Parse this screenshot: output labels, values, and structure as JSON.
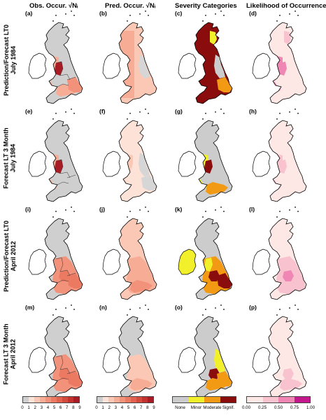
{
  "columns": [
    {
      "title": "Obs. Occur.",
      "radical": "√Nᵢ"
    },
    {
      "title": "Pred. Occur.",
      "radical": "√Nᵢ"
    },
    {
      "title": "Severity Categories",
      "radical": ""
    },
    {
      "title": "Likelihood of Occurrence",
      "radical": ""
    }
  ],
  "rows": [
    {
      "line1": "Prediction/Forecast LT0",
      "line2": "July 1984"
    },
    {
      "line1": "Forecast LT 3 Month",
      "line2": "July 1984"
    },
    {
      "line1": "Prediction/Forecast LT0",
      "line2": "April 2012"
    },
    {
      "line1": "Forecast LT 3 Month",
      "line2": "April 2012"
    }
  ],
  "panel_labels": [
    "(a)",
    "(b)",
    "(c)",
    "(d)",
    "(e)",
    "(f)",
    "(g)",
    "(h)",
    "(i)",
    "(j)",
    "(k)",
    "(l)",
    "(m)",
    "(n)",
    "(o)",
    "(p)"
  ],
  "colors": {
    "land_gray": "#cfcfcf",
    "occur_scale": [
      "#fde2d8",
      "#fbc8b5",
      "#f7ad95",
      "#f2927a",
      "#ec7a63",
      "#e2614f",
      "#d44a3d",
      "#c3322f",
      "#a81c25"
    ],
    "severity": {
      "none": "#cccccc",
      "minor": "#f2ef2b",
      "moderate": "#f29a13",
      "signif": "#8b0c0c"
    },
    "likelihood_scale": [
      "#fde8e5",
      "#f8c2cf",
      "#ef86b4",
      "#c2188c"
    ]
  },
  "legends": {
    "occurrence_ticks": [
      "0",
      "1",
      "2",
      "3",
      "4",
      "5",
      "6",
      "7",
      "8",
      "9"
    ],
    "severity_ticks": [
      "None",
      "Minor",
      "Moderate",
      "Signif."
    ],
    "likelihood_ticks": [
      "0.00",
      "0.25",
      "0.50",
      "0.75",
      "1.00"
    ]
  }
}
